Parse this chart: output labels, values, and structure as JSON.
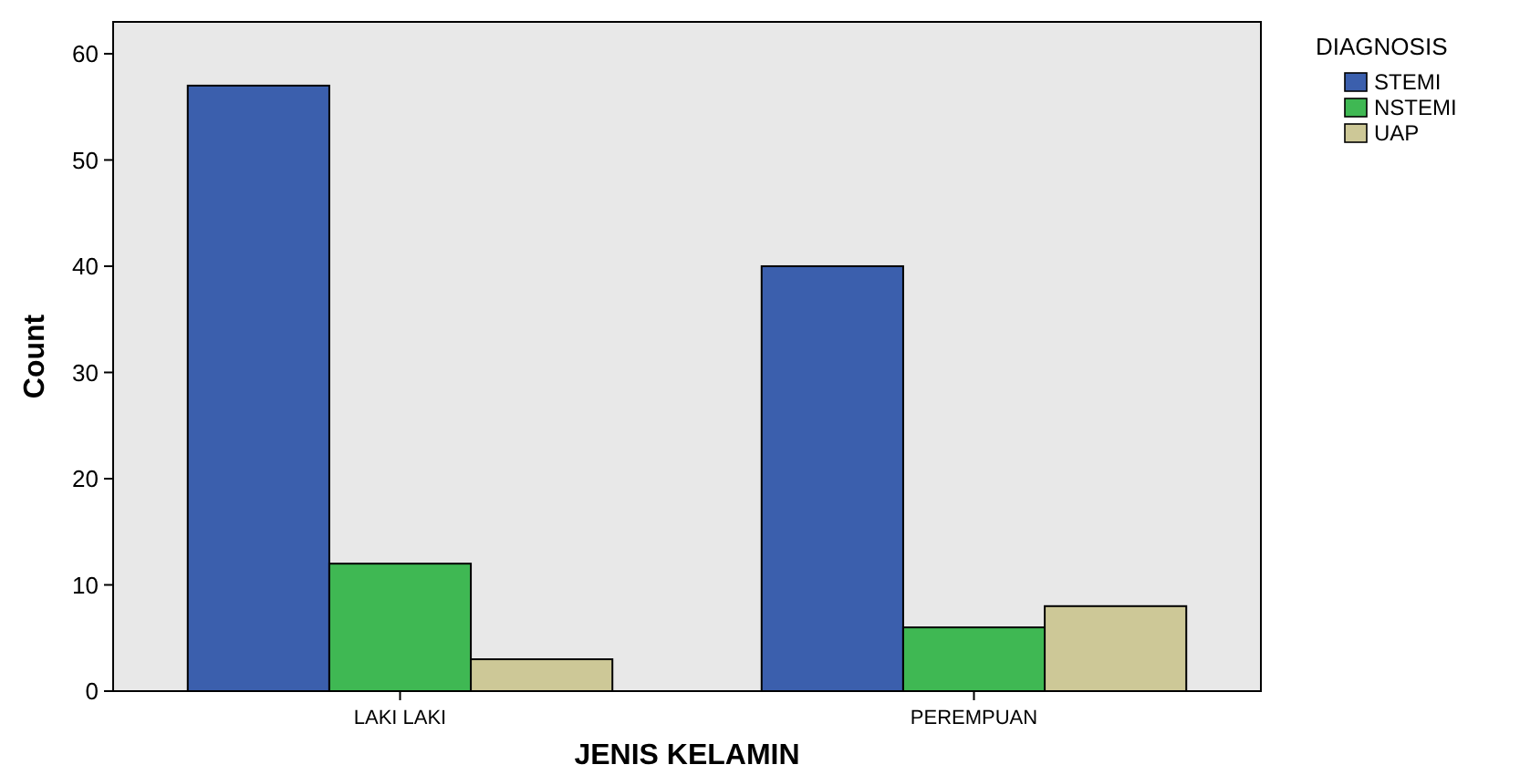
{
  "chart_data": {
    "type": "bar",
    "xlabel": "JENIS KELAMIN",
    "ylabel": "Count",
    "legend_title": "DIAGNOSIS",
    "categories": [
      "LAKI LAKI",
      "PEREMPUAN"
    ],
    "series": [
      {
        "name": "STEMI",
        "color": "#3b5fad",
        "values": [
          57,
          40
        ]
      },
      {
        "name": "NSTEMI",
        "color": "#3fb853",
        "values": [
          12,
          6
        ]
      },
      {
        "name": "UAP",
        "color": "#cdc897",
        "values": [
          3,
          8
        ]
      }
    ],
    "ylim": [
      0,
      63
    ],
    "yticks": [
      0,
      10,
      20,
      30,
      40,
      50,
      60
    ],
    "grid": false,
    "legend": "top right"
  }
}
